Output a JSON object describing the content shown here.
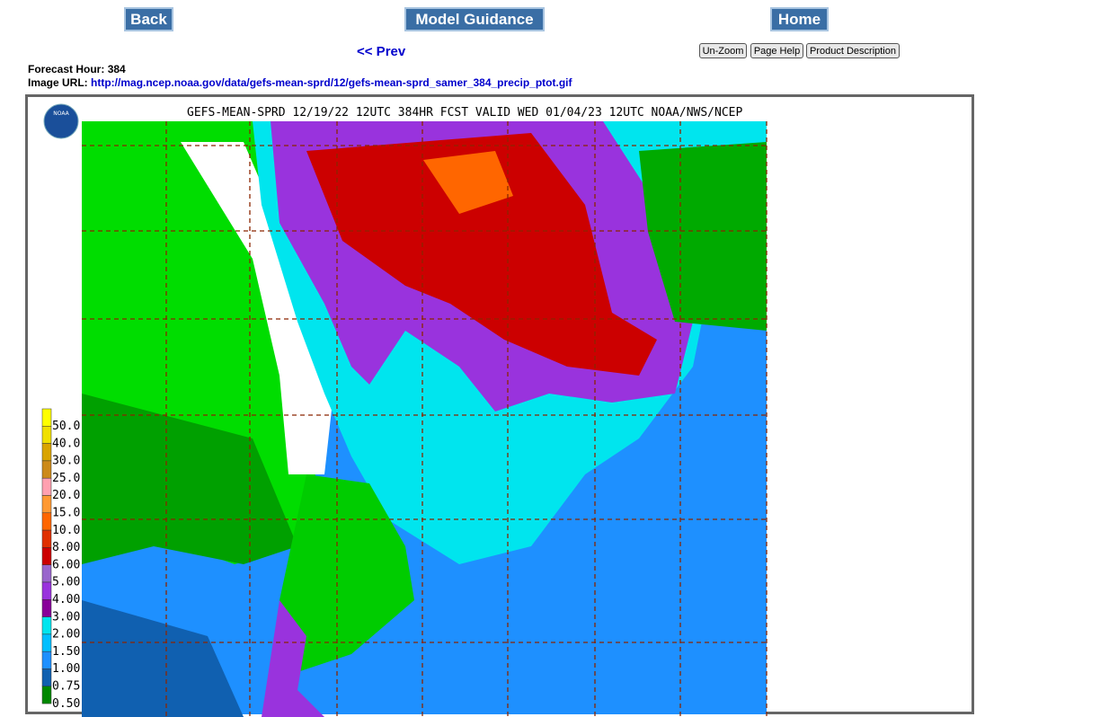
{
  "nav": {
    "back": "Back",
    "model_guidance": "Model Guidance",
    "home": "Home",
    "prev": "<< Prev",
    "unzoom": "Un-Zoom",
    "page_help": "Page Help",
    "product_description": "Product Description"
  },
  "info": {
    "forecast_hour_label": "Forecast Hour:",
    "forecast_hour": "384",
    "image_url_label": "Image URL:",
    "image_url": "http://mag.ncep.noaa.gov/data/gefs-mean-sprd/12/gefs-mean-sprd_samer_384_precip_ptot.gif"
  },
  "map": {
    "title": "GEFS-MEAN-SPRD 12/19/22 12UTC 384HR FCST VALID WED 01/04/23 12UTC NOAA/NWS/NCEP",
    "logo": "NOAA",
    "legend": [
      {
        "label": "50.0",
        "color": "#ffff00"
      },
      {
        "label": "40.0",
        "color": "#f0e000"
      },
      {
        "label": "30.0",
        "color": "#d9a400"
      },
      {
        "label": "25.0",
        "color": "#cc8a1a"
      },
      {
        "label": "20.0",
        "color": "#ffa0b0"
      },
      {
        "label": "15.0",
        "color": "#ff9933"
      },
      {
        "label": "10.0",
        "color": "#ff6600"
      },
      {
        "label": "8.00",
        "color": "#e03000"
      },
      {
        "label": "6.00",
        "color": "#cc0000"
      },
      {
        "label": "5.00",
        "color": "#9966cc"
      },
      {
        "label": "4.00",
        "color": "#9933dd"
      },
      {
        "label": "3.00",
        "color": "#880099"
      },
      {
        "label": "2.00",
        "color": "#00e5ee"
      },
      {
        "label": "1.50",
        "color": "#00bfff"
      },
      {
        "label": "1.00",
        "color": "#1e90ff"
      },
      {
        "label": "0.75",
        "color": "#1060b0"
      },
      {
        "label": "0.50",
        "color": "#008800"
      }
    ]
  }
}
